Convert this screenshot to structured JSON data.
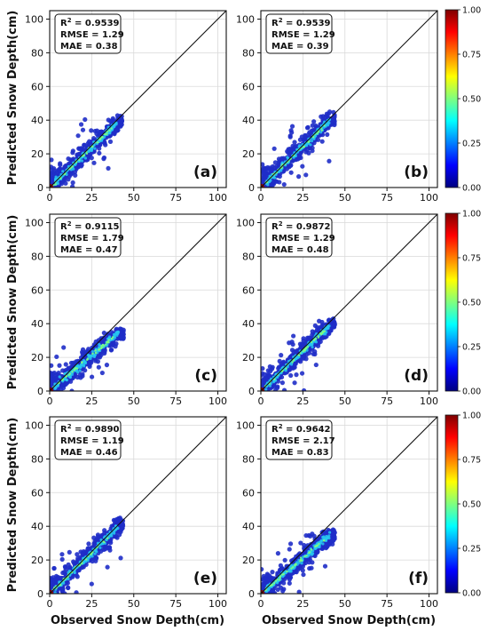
{
  "figure": {
    "ylabel": "Predicted Snow Depth(cm)",
    "xlabel": "Observed Snow Depth(cm)"
  },
  "colormap": {
    "name": "jet",
    "stops": [
      "#00007f",
      "#0000ff",
      "#007fff",
      "#00ffff",
      "#7fff7f",
      "#ffff00",
      "#ff7f00",
      "#ff0000",
      "#7f0000"
    ],
    "point_color": "#1f2ec8"
  },
  "chart_data": [
    {
      "type": "scatter",
      "panel_label": "(a)",
      "stats": {
        "r2_label": "R",
        "r2_sup": "2",
        "r2_value": " = 0.9539",
        "rmse": "RMSE = 1.29",
        "mae": "MAE = 0.38"
      },
      "xlim": [
        0,
        105
      ],
      "ylim": [
        0,
        105
      ],
      "xticks": [
        "0",
        "25",
        "50",
        "75",
        "100"
      ],
      "yticks": [
        "0",
        "20",
        "40",
        "60",
        "80",
        "100"
      ],
      "grid": true,
      "reference_line": "1:1",
      "max_x": 43,
      "max_y": 41,
      "slope": 0.95,
      "colorbar": {
        "ticks": [
          "0.00",
          "0.25",
          "0.50",
          "0.75",
          "1.00"
        ],
        "range": [
          0,
          1
        ]
      }
    },
    {
      "type": "scatter",
      "panel_label": "(b)",
      "stats": {
        "r2_label": "R",
        "r2_sup": "2",
        "r2_value": " = 0.9539",
        "rmse": "RMSE = 1.29",
        "mae": "MAE = 0.39"
      },
      "xlim": [
        0,
        105
      ],
      "ylim": [
        0,
        105
      ],
      "xticks": [
        "0",
        "25",
        "50",
        "75",
        "100"
      ],
      "yticks": [
        "0",
        "20",
        "40",
        "60",
        "80",
        "100"
      ],
      "grid": true,
      "reference_line": "1:1",
      "max_x": 44,
      "max_y": 43,
      "slope": 0.97,
      "colorbar": {
        "ticks": [
          "0.00",
          "0.25",
          "0.50",
          "0.75",
          "1.00"
        ],
        "range": [
          0,
          1
        ]
      }
    },
    {
      "type": "scatter",
      "panel_label": "(c)",
      "stats": {
        "r2_label": "R",
        "r2_sup": "2",
        "r2_value": " = 0.9115",
        "rmse": "RMSE = 1.79",
        "mae": "MAE = 0.47"
      },
      "xlim": [
        0,
        105
      ],
      "ylim": [
        0,
        105
      ],
      "xticks": [
        "0",
        "25",
        "50",
        "75",
        "100"
      ],
      "yticks": [
        "0",
        "20",
        "40",
        "60",
        "80",
        "100"
      ],
      "grid": true,
      "reference_line": "1:1",
      "max_x": 44,
      "max_y": 35,
      "slope": 0.85,
      "colorbar": {
        "ticks": [
          "0.00",
          "0.25",
          "0.50",
          "0.75",
          "1.00"
        ],
        "range": [
          0,
          1
        ]
      }
    },
    {
      "type": "scatter",
      "panel_label": "(d)",
      "stats": {
        "r2_label": "R",
        "r2_sup": "2",
        "r2_value": " = 0.9872",
        "rmse": "RMSE = 1.29",
        "mae": "MAE = 0.48"
      },
      "xlim": [
        0,
        105
      ],
      "ylim": [
        0,
        105
      ],
      "xticks": [
        "0",
        "25",
        "50",
        "75",
        "100"
      ],
      "yticks": [
        "0",
        "20",
        "40",
        "60",
        "80",
        "100"
      ],
      "grid": true,
      "reference_line": "1:1",
      "max_x": 44,
      "max_y": 41,
      "slope": 0.95,
      "colorbar": {
        "ticks": [
          "0.00",
          "0.25",
          "0.50",
          "0.75",
          "1.00"
        ],
        "range": [
          0,
          1
        ]
      }
    },
    {
      "type": "scatter",
      "panel_label": "(e)",
      "stats": {
        "r2_label": "R",
        "r2_sup": "2",
        "r2_value": " = 0.9890",
        "rmse": "RMSE = 1.19",
        "mae": "MAE = 0.46"
      },
      "xlim": [
        0,
        105
      ],
      "ylim": [
        0,
        105
      ],
      "xticks": [
        "0",
        "25",
        "50",
        "75",
        "100"
      ],
      "yticks": [
        "0",
        "20",
        "40",
        "60",
        "80",
        "100"
      ],
      "grid": true,
      "reference_line": "1:1",
      "max_x": 44,
      "max_y": 43,
      "slope": 0.97,
      "colorbar": {
        "ticks": [
          "0.00",
          "0.25",
          "0.50",
          "0.75",
          "1.00"
        ],
        "range": [
          0,
          1
        ]
      }
    },
    {
      "type": "scatter",
      "panel_label": "(f)",
      "stats": {
        "r2_label": "R",
        "r2_sup": "2",
        "r2_value": " = 0.9642",
        "rmse": "RMSE = 2.17",
        "mae": "MAE = 0.83"
      },
      "xlim": [
        0,
        105
      ],
      "ylim": [
        0,
        105
      ],
      "xticks": [
        "0",
        "25",
        "50",
        "75",
        "100"
      ],
      "yticks": [
        "0",
        "20",
        "40",
        "60",
        "80",
        "100"
      ],
      "grid": true,
      "reference_line": "1:1",
      "max_x": 44,
      "max_y": 36,
      "slope": 0.84,
      "colorbar": {
        "ticks": [
          "0.00",
          "0.25",
          "0.50",
          "0.75",
          "1.00"
        ],
        "range": [
          0,
          1
        ]
      }
    }
  ]
}
